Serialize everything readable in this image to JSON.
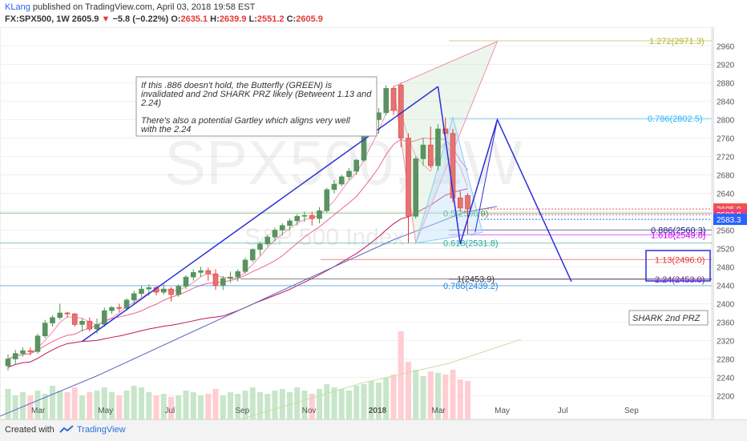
{
  "header": {
    "user": "KLang",
    "published": "published on TradingView.com, April 03, 2018 19:58 EST",
    "symbol": "FX:SPX500, 1W",
    "last": "2605.9",
    "change": "−5.8 (−0.22%)",
    "o_label": "O:",
    "o_val": "2635.1",
    "h_label": "H:",
    "h_val": "2639.9",
    "l_label": "L:",
    "l_val": "2551.2",
    "c_label": "C:",
    "c_val": "2605.9"
  },
  "footer": {
    "created": "Created with",
    "brand": "TradingView"
  },
  "chart_data": {
    "type": "candlestick",
    "watermark": "SPX500, 1W",
    "watermark_sub": "S&P 500 Index",
    "y_axis": {
      "min": 2180,
      "max": 2980,
      "ticks": [
        2200,
        2240,
        2280,
        2320,
        2360,
        2400,
        2440,
        2480,
        2520,
        2560,
        2600,
        2640,
        2680,
        2720,
        2760,
        2800,
        2840,
        2880,
        2920,
        2960
      ]
    },
    "x_labels": [
      {
        "label": "Mar",
        "i": 4
      },
      {
        "label": "May",
        "i": 13
      },
      {
        "label": "Jul",
        "i": 22
      },
      {
        "label": "Sep",
        "i": 31.5
      },
      {
        "label": "Nov",
        "i": 40.5
      },
      {
        "label": "2018",
        "i": 49.5
      },
      {
        "label": "Mar",
        "i": 58
      },
      {
        "label": "May",
        "i": 66.5
      },
      {
        "label": "Jul",
        "i": 75
      },
      {
        "label": "Sep",
        "i": 84
      }
    ],
    "candles": [
      [
        2265,
        2290,
        2255,
        2280
      ],
      [
        2280,
        2300,
        2268,
        2292
      ],
      [
        2292,
        2305,
        2285,
        2298
      ],
      [
        2298,
        2305,
        2288,
        2296
      ],
      [
        2296,
        2335,
        2292,
        2330
      ],
      [
        2330,
        2365,
        2325,
        2358
      ],
      [
        2358,
        2375,
        2350,
        2370
      ],
      [
        2370,
        2400,
        2365,
        2380
      ],
      [
        2380,
        2382,
        2370,
        2378
      ],
      [
        2378,
        2380,
        2350,
        2355
      ],
      [
        2355,
        2368,
        2340,
        2362
      ],
      [
        2362,
        2370,
        2340,
        2345
      ],
      [
        2345,
        2368,
        2335,
        2355
      ],
      [
        2355,
        2392,
        2350,
        2385
      ],
      [
        2385,
        2395,
        2378,
        2392
      ],
      [
        2392,
        2400,
        2382,
        2390
      ],
      [
        2390,
        2412,
        2385,
        2408
      ],
      [
        2408,
        2428,
        2400,
        2422
      ],
      [
        2422,
        2440,
        2415,
        2432
      ],
      [
        2432,
        2442,
        2418,
        2435
      ],
      [
        2435,
        2438,
        2418,
        2425
      ],
      [
        2425,
        2442,
        2420,
        2432
      ],
      [
        2432,
        2436,
        2405,
        2420
      ],
      [
        2420,
        2442,
        2415,
        2438
      ],
      [
        2438,
        2462,
        2432,
        2458
      ],
      [
        2458,
        2475,
        2450,
        2468
      ],
      [
        2468,
        2480,
        2458,
        2472
      ],
      [
        2472,
        2478,
        2450,
        2465
      ],
      [
        2465,
        2475,
        2430,
        2440
      ],
      [
        2440,
        2460,
        2430,
        2455
      ],
      [
        2455,
        2470,
        2445,
        2458
      ],
      [
        2458,
        2475,
        2448,
        2470
      ],
      [
        2470,
        2500,
        2465,
        2495
      ],
      [
        2495,
        2520,
        2490,
        2518
      ],
      [
        2518,
        2535,
        2505,
        2530
      ],
      [
        2530,
        2550,
        2525,
        2545
      ],
      [
        2545,
        2565,
        2535,
        2560
      ],
      [
        2560,
        2575,
        2548,
        2570
      ],
      [
        2570,
        2585,
        2560,
        2580
      ],
      [
        2580,
        2595,
        2570,
        2590
      ],
      [
        2590,
        2600,
        2578,
        2592
      ],
      [
        2592,
        2600,
        2570,
        2585
      ],
      [
        2585,
        2610,
        2575,
        2602
      ],
      [
        2602,
        2652,
        2598,
        2648
      ],
      [
        2648,
        2668,
        2640,
        2660
      ],
      [
        2660,
        2680,
        2655,
        2676
      ],
      [
        2676,
        2695,
        2670,
        2688
      ],
      [
        2688,
        2715,
        2680,
        2712
      ],
      [
        2712,
        2780,
        2708,
        2775
      ],
      [
        2775,
        2810,
        2770,
        2800
      ],
      [
        2800,
        2825,
        2770,
        2815
      ],
      [
        2815,
        2875,
        2810,
        2868
      ],
      [
        2868,
        2872,
        2810,
        2820
      ],
      [
        2875,
        2880,
        2740,
        2760
      ],
      [
        2760,
        2770,
        2532,
        2590
      ],
      [
        2590,
        2720,
        2585,
        2715
      ],
      [
        2715,
        2760,
        2700,
        2745
      ],
      [
        2745,
        2785,
        2695,
        2700
      ],
      [
        2700,
        2790,
        2690,
        2780
      ],
      [
        2780,
        2805,
        2760,
        2770
      ],
      [
        2770,
        2780,
        2620,
        2630
      ],
      [
        2630,
        2645,
        2600,
        2608
      ],
      [
        2635,
        2640,
        2551,
        2606
      ]
    ],
    "lines": [
      {
        "name": "fib_0.886",
        "y": 2560.3,
        "label": "0.886(2560.3)",
        "color": "#1a237e"
      },
      {
        "name": "fib_1.618",
        "y": 2549.8,
        "label": "1.618(2549.8)",
        "color": "#d500f9"
      },
      {
        "name": "fib_0.786_top",
        "y": 2802.5,
        "label": "0.786(2802.5)",
        "color": "#29b6f6"
      },
      {
        "name": "fib_1.272",
        "y": 2971.3,
        "label": "1.272(2971.3)",
        "color": "#afb42b"
      },
      {
        "name": "fib_1.13",
        "y": 2496.0,
        "label": "1.13(2496.0)",
        "color": "#e53935"
      },
      {
        "name": "fib_2.24",
        "y": 2453.0,
        "label": "2.24(2453.0)",
        "color": "#7b1fa2"
      },
      {
        "name": "fib_0.5",
        "y": 2596.9,
        "label": "0.5(2596.9)",
        "color": "#43a047"
      },
      {
        "name": "fib_0.618",
        "y": 2531.8,
        "label": "0.618(2531.8)",
        "color": "#26a69a"
      },
      {
        "name": "fib_1",
        "y": 2453.9,
        "label": "1(2453.9)",
        "color": "#333333"
      },
      {
        "name": "fib_0.786_low",
        "y": 2439.2,
        "label": "0.786(2439.2)",
        "color": "#1e88e5"
      }
    ],
    "price_tags": [
      {
        "value": "2605.9",
        "y": 2605.9,
        "color": "#ef5350"
      },
      {
        "value": "2593.8",
        "y": 2593.8,
        "color": "#ec407a"
      },
      {
        "value": "2583.3",
        "y": 2583.3,
        "color": "#2962ff"
      }
    ],
    "annotations": {
      "note": "If this .886 doesn't hold, the Butterfly (GREEN) is invalidated and 2nd SHARK PRZ likely (Betweent 1.13 and 2.24)\n\nThere's also a potential Gartley which aligns very well with the 2.24",
      "shark": "SHARK 2nd PRZ"
    },
    "volume": [
      38,
      30,
      34,
      30,
      36,
      32,
      42,
      36,
      34,
      40,
      30,
      34,
      36,
      40,
      34,
      30,
      36,
      42,
      40,
      34,
      30,
      32,
      28,
      30,
      36,
      34,
      30,
      32,
      38,
      30,
      34,
      32,
      36,
      40,
      34,
      32,
      36,
      38,
      34,
      40,
      36,
      32,
      38,
      44,
      40,
      38,
      36,
      42,
      44,
      48,
      46,
      52,
      56,
      110,
      72,
      62,
      54,
      60,
      58,
      56,
      62,
      50,
      48
    ]
  }
}
